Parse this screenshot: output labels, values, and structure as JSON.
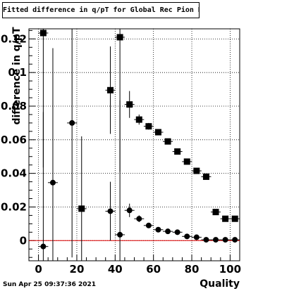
{
  "title": "Fitted difference in q/pT for Global Rec Pion NoHits",
  "footer": "Sun Apr 25 09:37:36 2021",
  "chart_data": {
    "type": "scatter",
    "title": "Fitted difference in q/pT for Global Rec Pion NoHits",
    "xlabel": "Quality",
    "ylabel": "difference in q/pT",
    "xlim": [
      -5,
      105
    ],
    "ylim": [
      -0.012,
      0.126
    ],
    "x_ticks": [
      0,
      20,
      40,
      60,
      80,
      100
    ],
    "y_ticks": [
      0,
      0.02,
      0.04,
      0.06,
      0.08,
      0.1,
      0.12
    ],
    "x_tick_labels": [
      "0",
      "20",
      "40",
      "60",
      "80",
      "100"
    ],
    "y_tick_labels": [
      "0",
      "0.02",
      "0.04",
      "0.06",
      "0.08",
      "0.1",
      "0.12"
    ],
    "grid": true,
    "reference_line": {
      "y": 0,
      "color": "#e00000"
    },
    "series": [
      {
        "marker": "square",
        "color": "#000000",
        "points": [
          {
            "x": 2.5,
            "y": 0.1235,
            "err": 0.08
          },
          {
            "x": 22.5,
            "y": 0.019,
            "err": 0.043
          },
          {
            "x": 37.5,
            "y": 0.0895,
            "err": 0.026
          },
          {
            "x": 42.5,
            "y": 0.121,
            "err": 0.08
          },
          {
            "x": 47.5,
            "y": 0.081,
            "err": 0.008
          },
          {
            "x": 52.5,
            "y": 0.072,
            "err": 0.003
          },
          {
            "x": 57.5,
            "y": 0.068,
            "err": 0.002
          },
          {
            "x": 62.5,
            "y": 0.0645,
            "err": 0.0015
          },
          {
            "x": 67.5,
            "y": 0.059,
            "err": 0.001
          },
          {
            "x": 72.5,
            "y": 0.053,
            "err": 0.001
          },
          {
            "x": 77.5,
            "y": 0.047,
            "err": 0.001
          },
          {
            "x": 82.5,
            "y": 0.0415,
            "err": 0.001
          },
          {
            "x": 87.5,
            "y": 0.038,
            "err": 0.001
          },
          {
            "x": 92.5,
            "y": 0.017,
            "err": 0.001
          },
          {
            "x": 97.5,
            "y": 0.013,
            "err": 0.001
          },
          {
            "x": 102.5,
            "y": 0.013,
            "err": 0.001
          }
        ]
      },
      {
        "marker": "circle",
        "color": "#000000",
        "points": [
          {
            "x": 2.5,
            "y": -0.0035,
            "err": 0.08
          },
          {
            "x": 7.5,
            "y": 0.0345,
            "err": 0.08
          },
          {
            "x": 17.5,
            "y": 0.07,
            "err": 0.08
          },
          {
            "x": 37.5,
            "y": 0.0175,
            "err": 0.0175
          },
          {
            "x": 42.5,
            "y": 0.0035,
            "err": 0.08
          },
          {
            "x": 47.5,
            "y": 0.018,
            "err": 0.004
          },
          {
            "x": 52.5,
            "y": 0.013,
            "err": 0.002
          },
          {
            "x": 57.5,
            "y": 0.009,
            "err": 0.001
          },
          {
            "x": 62.5,
            "y": 0.0065,
            "err": 0.001
          },
          {
            "x": 67.5,
            "y": 0.0055,
            "err": 0.001
          },
          {
            "x": 72.5,
            "y": 0.005,
            "err": 0.001
          },
          {
            "x": 77.5,
            "y": 0.0025,
            "err": 0.001
          },
          {
            "x": 82.5,
            "y": 0.002,
            "err": 0.001
          },
          {
            "x": 87.5,
            "y": 0.0005,
            "err": 0.0005
          },
          {
            "x": 92.5,
            "y": 0.0005,
            "err": 0.0005
          },
          {
            "x": 97.5,
            "y": 0.0005,
            "err": 0.0005
          },
          {
            "x": 102.5,
            "y": 0.0005,
            "err": 0.0005
          }
        ]
      }
    ]
  }
}
